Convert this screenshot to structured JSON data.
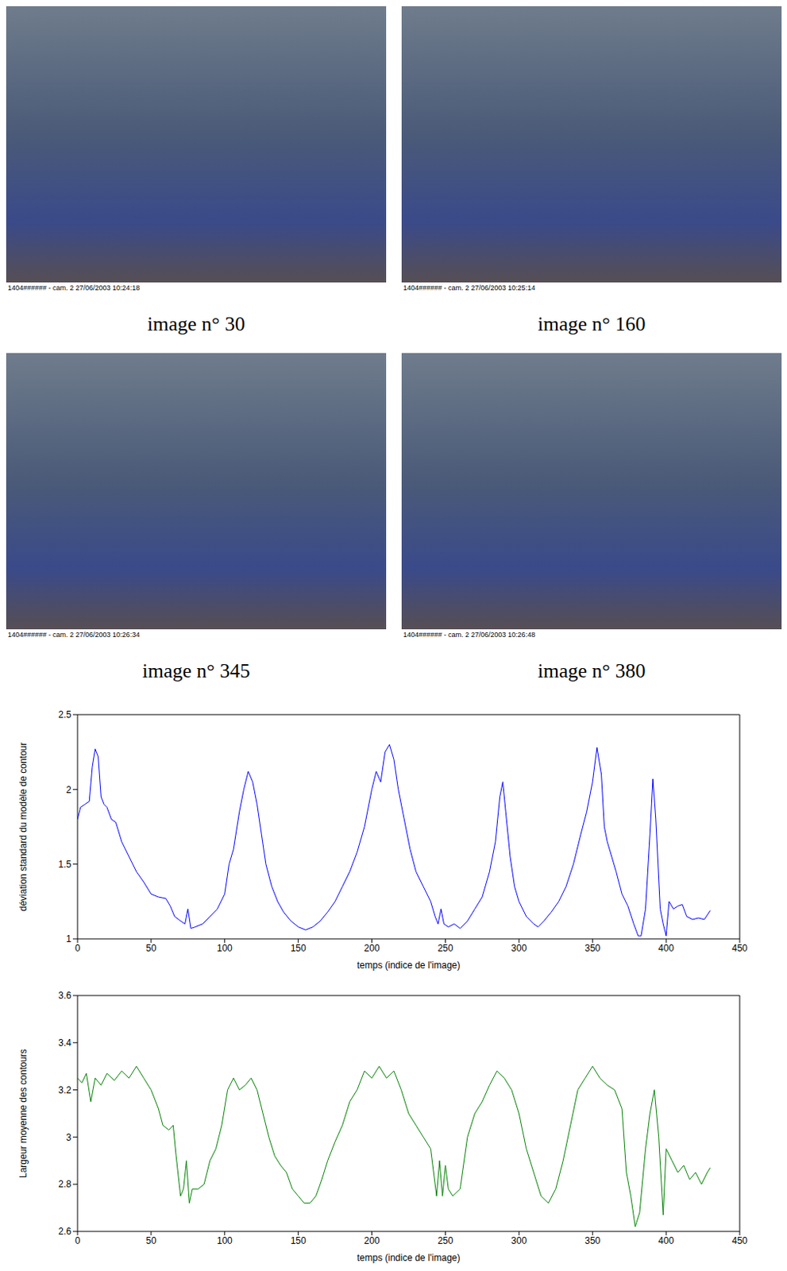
{
  "photos": [
    {
      "caption": "image n° 30",
      "stamp": "1404###### - cam. 2 27/06/2003 10:24:18"
    },
    {
      "caption": "image n° 160",
      "stamp": "1404###### - cam. 2 27/06/2003 10:25:14"
    },
    {
      "caption": "image n° 345",
      "stamp": "1404###### - cam. 2 27/06/2003 10:26:34"
    },
    {
      "caption": "image n° 380",
      "stamp": "1404###### - cam. 2 27/06/2003 10:26:48"
    }
  ],
  "chart_data": [
    {
      "type": "line",
      "x_label": "temps (indice de l'image)",
      "y_label": "déviation standard du modèle de contour",
      "color": "#0000ff",
      "xlim": [
        0,
        450
      ],
      "xticks": [
        0,
        50,
        100,
        150,
        200,
        250,
        300,
        350,
        400,
        450
      ],
      "ylim": [
        1,
        2.5
      ],
      "yticks": [
        1,
        1.5,
        2,
        2.5
      ],
      "x": [
        0,
        2,
        5,
        8,
        10,
        12,
        14,
        16,
        18,
        20,
        23,
        26,
        30,
        35,
        40,
        45,
        50,
        55,
        60,
        63,
        66,
        70,
        73,
        75,
        77,
        80,
        85,
        90,
        95,
        100,
        103,
        106,
        110,
        113,
        116,
        119,
        122,
        125,
        128,
        132,
        136,
        140,
        145,
        150,
        155,
        160,
        165,
        170,
        175,
        180,
        185,
        190,
        195,
        200,
        203,
        206,
        209,
        212,
        215,
        218,
        222,
        226,
        230,
        235,
        240,
        243,
        245,
        247,
        249,
        252,
        256,
        260,
        265,
        270,
        275,
        280,
        284,
        287,
        289,
        291,
        294,
        297,
        300,
        305,
        310,
        313,
        317,
        322,
        327,
        332,
        337,
        342,
        346,
        350,
        353,
        356,
        358,
        360,
        363,
        366,
        370,
        374,
        378,
        381,
        383,
        386,
        389,
        391,
        393,
        396,
        398,
        400,
        402,
        405,
        408,
        411,
        414,
        418,
        422,
        426,
        430
      ],
      "values": [
        1.8,
        1.88,
        1.9,
        1.92,
        2.15,
        2.27,
        2.22,
        1.95,
        1.9,
        1.88,
        1.8,
        1.78,
        1.65,
        1.55,
        1.45,
        1.38,
        1.3,
        1.28,
        1.27,
        1.22,
        1.15,
        1.12,
        1.1,
        1.2,
        1.07,
        1.08,
        1.1,
        1.15,
        1.2,
        1.3,
        1.5,
        1.6,
        1.85,
        2.0,
        2.12,
        2.05,
        1.9,
        1.7,
        1.5,
        1.35,
        1.25,
        1.18,
        1.12,
        1.08,
        1.06,
        1.08,
        1.12,
        1.18,
        1.25,
        1.35,
        1.45,
        1.58,
        1.75,
        2.0,
        2.12,
        2.05,
        2.25,
        2.3,
        2.2,
        2.0,
        1.8,
        1.6,
        1.45,
        1.35,
        1.25,
        1.15,
        1.1,
        1.2,
        1.1,
        1.08,
        1.1,
        1.07,
        1.12,
        1.2,
        1.28,
        1.45,
        1.65,
        1.95,
        2.05,
        1.85,
        1.55,
        1.35,
        1.25,
        1.15,
        1.1,
        1.08,
        1.12,
        1.18,
        1.25,
        1.35,
        1.5,
        1.7,
        1.85,
        2.05,
        2.28,
        2.1,
        1.75,
        1.65,
        1.55,
        1.45,
        1.3,
        1.22,
        1.1,
        1.02,
        1.02,
        1.2,
        1.7,
        2.07,
        1.8,
        1.2,
        1.1,
        1.02,
        1.25,
        1.2,
        1.22,
        1.23,
        1.15,
        1.13,
        1.14,
        1.13,
        1.19
      ]
    },
    {
      "type": "line",
      "x_label": "temps (indice de l'image)",
      "y_label": "Largeur moyenne des contours",
      "color": "#008000",
      "xlim": [
        0,
        450
      ],
      "xticks": [
        0,
        50,
        100,
        150,
        200,
        250,
        300,
        350,
        400,
        450
      ],
      "ylim": [
        2.6,
        3.6
      ],
      "yticks": [
        2.6,
        2.8,
        3,
        3.2,
        3.4,
        3.6
      ],
      "x": [
        0,
        3,
        6,
        9,
        12,
        16,
        20,
        25,
        30,
        35,
        40,
        45,
        50,
        55,
        58,
        62,
        65,
        67,
        70,
        72,
        74,
        76,
        78,
        82,
        86,
        90,
        94,
        98,
        102,
        106,
        110,
        114,
        118,
        122,
        126,
        130,
        134,
        138,
        142,
        146,
        150,
        154,
        158,
        162,
        166,
        170,
        175,
        180,
        185,
        190,
        195,
        200,
        205,
        210,
        215,
        220,
        225,
        230,
        235,
        240,
        244,
        246,
        248,
        250,
        252,
        255,
        260,
        265,
        270,
        275,
        280,
        285,
        290,
        295,
        300,
        305,
        310,
        315,
        320,
        325,
        330,
        335,
        340,
        345,
        350,
        355,
        360,
        365,
        370,
        373,
        376,
        379,
        382,
        386,
        389,
        392,
        395,
        398,
        400,
        404,
        408,
        412,
        416,
        420,
        424,
        428,
        430
      ],
      "values": [
        3.25,
        3.23,
        3.27,
        3.15,
        3.25,
        3.22,
        3.27,
        3.24,
        3.28,
        3.25,
        3.3,
        3.25,
        3.2,
        3.12,
        3.05,
        3.03,
        3.05,
        2.92,
        2.75,
        2.78,
        2.9,
        2.72,
        2.78,
        2.78,
        2.8,
        2.9,
        2.95,
        3.05,
        3.2,
        3.25,
        3.2,
        3.22,
        3.25,
        3.2,
        3.1,
        3.0,
        2.92,
        2.88,
        2.85,
        2.78,
        2.75,
        2.72,
        2.72,
        2.75,
        2.82,
        2.9,
        2.98,
        3.05,
        3.15,
        3.2,
        3.28,
        3.25,
        3.3,
        3.25,
        3.28,
        3.2,
        3.1,
        3.05,
        3.0,
        2.95,
        2.75,
        2.9,
        2.75,
        2.88,
        2.78,
        2.75,
        2.78,
        3.0,
        3.1,
        3.15,
        3.22,
        3.28,
        3.25,
        3.2,
        3.1,
        2.95,
        2.85,
        2.75,
        2.72,
        2.78,
        2.9,
        3.05,
        3.2,
        3.25,
        3.3,
        3.25,
        3.22,
        3.2,
        3.12,
        2.85,
        2.75,
        2.62,
        2.68,
        2.95,
        3.1,
        3.2,
        3.0,
        2.67,
        2.95,
        2.9,
        2.85,
        2.88,
        2.82,
        2.85,
        2.8,
        2.85,
        2.87
      ]
    }
  ]
}
